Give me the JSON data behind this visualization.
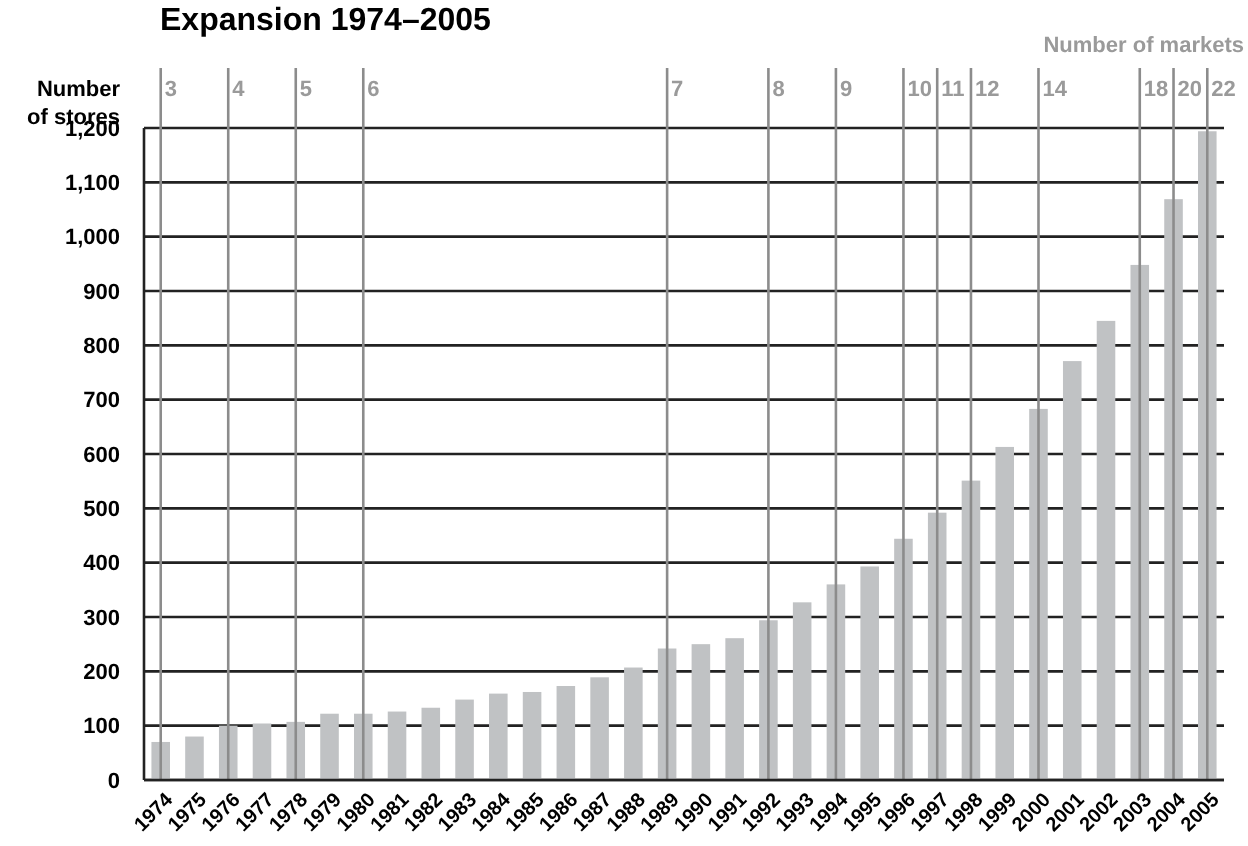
{
  "chart_data": {
    "type": "bar",
    "title": "Expansion 1974–2005",
    "ylabel": "Number of stores",
    "annotations": [
      "Number of markets"
    ],
    "categories": [
      "1974",
      "1975",
      "1976",
      "1977",
      "1978",
      "1979",
      "1980",
      "1981",
      "1982",
      "1983",
      "1984",
      "1985",
      "1986",
      "1987",
      "1988",
      "1989",
      "1990",
      "1991",
      "1992",
      "1993",
      "1994",
      "1995",
      "1996",
      "1997",
      "1998",
      "1999",
      "2000",
      "2001",
      "2002",
      "2003",
      "2004",
      "2005"
    ],
    "values": [
      70,
      80,
      100,
      104,
      107,
      122,
      122,
      126,
      133,
      148,
      159,
      162,
      173,
      189,
      207,
      242,
      250,
      261,
      294,
      327,
      360,
      393,
      444,
      492,
      551,
      613,
      683,
      771,
      845,
      948,
      1069,
      1194
    ],
    "color": "#c0c2c4",
    "ylim": [
      0,
      1200
    ],
    "yticks": [
      0,
      100,
      200,
      300,
      400,
      500,
      600,
      700,
      800,
      900,
      {
        "value": 1000,
        "label": "1,000"
      },
      {
        "value": 1100,
        "label": "1,100"
      },
      {
        "value": 1200,
        "label": "1,200"
      }
    ],
    "grid": "y",
    "ref_lines": [
      {
        "axis": "x",
        "value": "1974",
        "label": "3"
      },
      {
        "axis": "x",
        "value": "1976",
        "label": "4"
      },
      {
        "axis": "x",
        "value": "1978",
        "label": "5"
      },
      {
        "axis": "x",
        "value": "1980",
        "label": "6"
      },
      {
        "axis": "x",
        "value": "1989",
        "label": "7"
      },
      {
        "axis": "x",
        "value": "1992",
        "label": "8"
      },
      {
        "axis": "x",
        "value": "1994",
        "label": "9"
      },
      {
        "axis": "x",
        "value": "1996",
        "label": "10"
      },
      {
        "axis": "x",
        "value": "1997",
        "label": "11"
      },
      {
        "axis": "x",
        "value": "1998",
        "label": "12"
      },
      {
        "axis": "x",
        "value": "2000",
        "label": "14"
      },
      {
        "axis": "x",
        "value": "2003",
        "label": "18"
      },
      {
        "axis": "x",
        "value": "2004",
        "label": "20"
      },
      {
        "axis": "x",
        "value": "2005",
        "label": "22"
      }
    ]
  }
}
